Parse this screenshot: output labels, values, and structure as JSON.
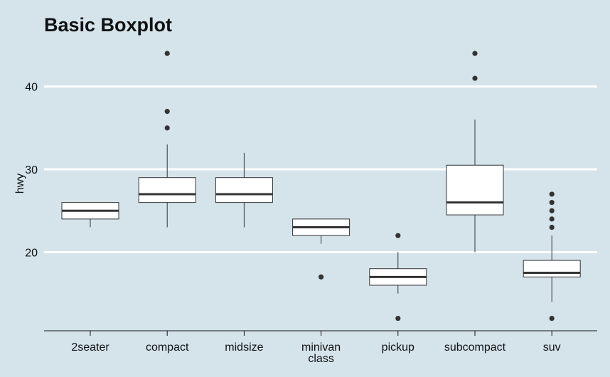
{
  "chart_data": {
    "type": "boxplot",
    "title": "Basic Boxplot",
    "xlabel": "class",
    "ylabel": "hwy",
    "ylim": [
      10.5,
      45.3
    ],
    "yticks": [
      20,
      30,
      40
    ],
    "grid": "horizontal major lines",
    "background_color": "#d5e4eb",
    "grid_color": "#ffffff",
    "box_fill": "#ffffff",
    "line_color": "#333333",
    "categories": [
      "2seater",
      "compact",
      "midsize",
      "minivan",
      "pickup",
      "subcompact",
      "suv"
    ],
    "boxes": [
      {
        "category": "2seater",
        "whisker_low": 23,
        "q1": 24,
        "median": 25,
        "q3": 26,
        "whisker_high": 26,
        "outliers": []
      },
      {
        "category": "compact",
        "whisker_low": 23,
        "q1": 26,
        "median": 27,
        "q3": 29,
        "whisker_high": 33,
        "outliers": [
          35,
          37,
          44
        ]
      },
      {
        "category": "midsize",
        "whisker_low": 23,
        "q1": 26,
        "median": 27,
        "q3": 29,
        "whisker_high": 32,
        "outliers": []
      },
      {
        "category": "minivan",
        "whisker_low": 21,
        "q1": 22,
        "median": 23,
        "q3": 24,
        "whisker_high": 24,
        "outliers": [
          17
        ]
      },
      {
        "category": "pickup",
        "whisker_low": 15,
        "q1": 16,
        "median": 17,
        "q3": 18,
        "whisker_high": 20,
        "outliers": [
          12,
          22
        ]
      },
      {
        "category": "subcompact",
        "whisker_low": 20,
        "q1": 24.5,
        "median": 26,
        "q3": 30.5,
        "whisker_high": 36,
        "outliers": [
          41,
          44
        ]
      },
      {
        "category": "suv",
        "whisker_low": 14,
        "q1": 17,
        "median": 17.5,
        "q3": 19,
        "whisker_high": 22,
        "outliers": [
          12,
          23,
          24,
          25,
          26,
          27
        ]
      }
    ]
  }
}
